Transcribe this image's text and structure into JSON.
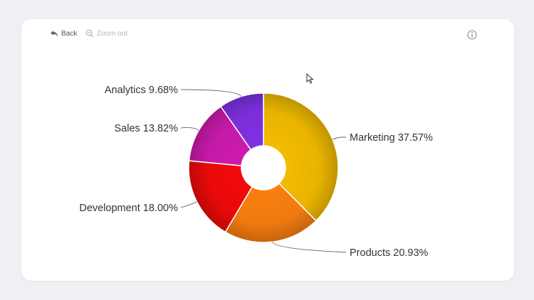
{
  "toolbar": {
    "back_label": "Back",
    "zoom_out_label": "Zoom-out",
    "back_icon": "undo-arrow-icon",
    "zoom_out_icon": "magnifier-minus-icon",
    "info_icon": "info-circle-icon"
  },
  "chart_data": {
    "type": "pie",
    "donut": true,
    "title": "",
    "slices": [
      {
        "label": "Marketing",
        "value": 37.57,
        "display": "Marketing 37.57%",
        "color": "#e8b400"
      },
      {
        "label": "Products",
        "value": 20.93,
        "display": "Products 20.93%",
        "color": "#f07a10"
      },
      {
        "label": "Development",
        "value": 18.0,
        "display": "Development 18.00%",
        "color": "#e80a0a"
      },
      {
        "label": "Sales",
        "value": 13.82,
        "display": "Sales 13.82%",
        "color": "#c41aa6"
      },
      {
        "label": "Analytics",
        "value": 9.68,
        "display": "Analytics 9.68%",
        "color": "#7a2fd8"
      }
    ]
  }
}
